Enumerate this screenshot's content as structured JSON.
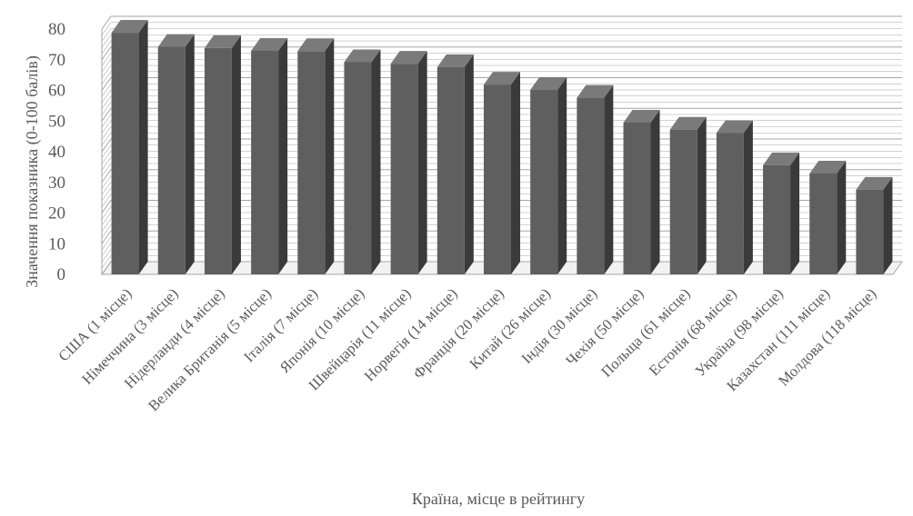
{
  "chart_data": {
    "type": "bar",
    "title": "",
    "xlabel": "Країна, місце в рейтингу",
    "ylabel": "Значення показника (0-100 балів)",
    "ylim": [
      0,
      80
    ],
    "yticks": [
      0,
      10,
      20,
      30,
      40,
      50,
      60,
      70,
      80
    ],
    "grid": true,
    "legend": "none",
    "style": "3d-column",
    "colors": {
      "bar_front": "#5f5f5f",
      "bar_side": "#3a3a3a",
      "bar_top": "#7a7a7a",
      "grid": "#a6a6a6",
      "text": "#595959"
    },
    "categories": [
      "США (1 місце)",
      "Німеччина (3 місце)",
      "Нідерланди (4 місце)",
      "Велика Британія (5 місце)",
      "Італія (7 місце)",
      "Японія (10 місце)",
      "Швейцарія (11 місце)",
      "Норвегія (14 місце)",
      "Франція (20 місце)",
      "Китай (26 місце)",
      "Індія (30 місце)",
      "Чехія (50 місце)",
      "Польща (61 місце)",
      "Естонія (68 місце)",
      "Україна (98 місце)",
      "Казахстан (111 місце)",
      "Молдова (118 місце)"
    ],
    "values": [
      78.8,
      74.2,
      73.8,
      72.9,
      72.8,
      69.2,
      68.7,
      67.6,
      61.9,
      60.2,
      57.6,
      49.5,
      47.2,
      46.1,
      35.6,
      32.9,
      27.6
    ]
  }
}
